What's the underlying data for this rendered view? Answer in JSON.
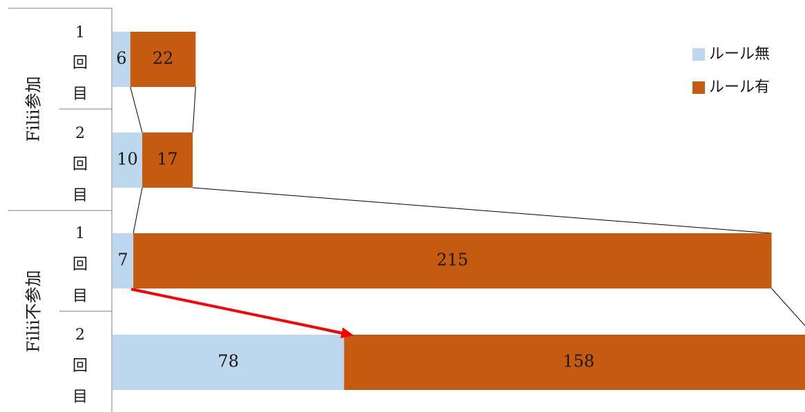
{
  "chart_data": {
    "type": "bar",
    "stacked": true,
    "orientation": "horizontal",
    "groups": [
      {
        "label": "Filii参加",
        "rows": [
          0,
          1
        ]
      },
      {
        "label": "Filii不参加",
        "rows": [
          2,
          3
        ]
      }
    ],
    "categories": [
      [
        "1",
        "回",
        "目"
      ],
      [
        "2",
        "回",
        "目"
      ],
      [
        "1",
        "回",
        "目"
      ],
      [
        "2",
        "回",
        "目"
      ]
    ],
    "series": [
      {
        "name": "ルール無",
        "values": [
          6,
          10,
          7,
          78
        ],
        "color": "#bdd7ee"
      },
      {
        "name": "ルール有",
        "values": [
          22,
          17,
          215,
          158
        ],
        "color": "#c55a11"
      }
    ],
    "legend_position": "top-right",
    "connector_lines": true,
    "arrow": {
      "from_row": 2,
      "to_row": 3,
      "color": "#ff0000"
    }
  }
}
